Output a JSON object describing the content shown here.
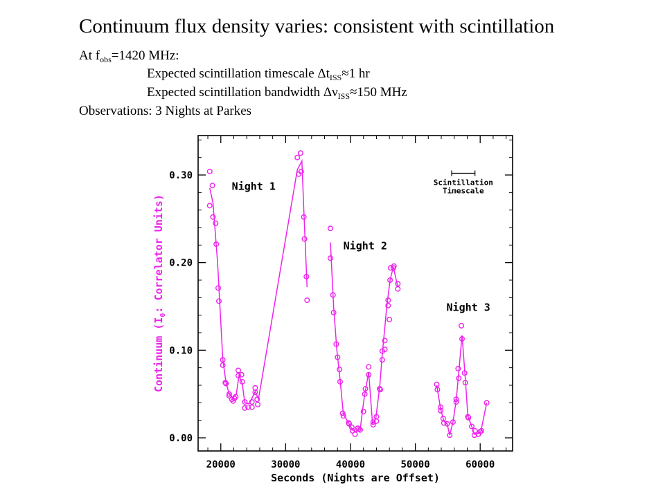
{
  "slide": {
    "title": "Continuum flux density varies: consistent with scintillation",
    "line1": {
      "prefix": "At f",
      "sub": "obs",
      "suffix": "=1420 MHz:"
    },
    "line2": {
      "prefix": "Expected scintillation timescale  Δt",
      "sub": "ISS",
      "suffix": "≈1 hr"
    },
    "line3": {
      "prefix": "Expected scintillation bandwidth Δν",
      "sub": "ISS",
      "suffix": "≈150 MHz"
    },
    "line4": "Observations: 3 Nights at Parkes"
  },
  "colors": {
    "series": "#ee22ee",
    "axis": "#000000",
    "text": "#000000"
  },
  "chart_data": {
    "type": "scatter",
    "xlabel": "Seconds (Nights are Offset)",
    "ylabel_parts": {
      "main": "Continuum (I",
      "sub": "0",
      "tail": ": Correlator Units)"
    },
    "xlim": [
      16500,
      65000
    ],
    "ylim": [
      -0.015,
      0.345
    ],
    "xticks": [
      20000,
      30000,
      40000,
      50000,
      60000
    ],
    "yticks": [
      0.0,
      0.1,
      0.2,
      0.3
    ],
    "xtick_labels": [
      "20000",
      "30000",
      "40000",
      "50000",
      "60000"
    ],
    "ytick_labels": [
      "0.00",
      "0.10",
      "0.20",
      "0.30"
    ],
    "grid": false,
    "annotations": [
      {
        "text": "Night 1",
        "x": 21700,
        "y": 0.283
      },
      {
        "text": "Night 2",
        "x": 38900,
        "y": 0.215
      },
      {
        "text": "Night 3",
        "x": 54800,
        "y": 0.145
      }
    ],
    "scale_bar": {
      "label1": "Scintillation",
      "label2": "Timescale",
      "x_start": 55600,
      "x_end": 59200,
      "y": 0.302
    },
    "series": [
      {
        "name": "Night 1",
        "points": [
          [
            18300,
            0.304
          ],
          [
            18300,
            0.265
          ],
          [
            18700,
            0.288
          ],
          [
            18800,
            0.252
          ],
          [
            19200,
            0.245
          ],
          [
            19300,
            0.221
          ],
          [
            19600,
            0.171
          ],
          [
            19700,
            0.156
          ],
          [
            20300,
            0.089
          ],
          [
            20300,
            0.083
          ],
          [
            20700,
            0.063
          ],
          [
            20800,
            0.062
          ],
          [
            21300,
            0.05
          ],
          [
            21300,
            0.048
          ],
          [
            21700,
            0.044
          ],
          [
            21900,
            0.042
          ],
          [
            22100,
            0.045
          ],
          [
            22300,
            0.047
          ],
          [
            22700,
            0.077
          ],
          [
            22700,
            0.071
          ],
          [
            23200,
            0.072
          ],
          [
            23300,
            0.064
          ],
          [
            23700,
            0.041
          ],
          [
            23700,
            0.034
          ],
          [
            24200,
            0.035
          ],
          [
            24800,
            0.041
          ],
          [
            24800,
            0.035
          ],
          [
            25300,
            0.052
          ],
          [
            25300,
            0.057
          ],
          [
            25600,
            0.044
          ],
          [
            25700,
            0.038
          ],
          [
            31800,
            0.32
          ],
          [
            32000,
            0.301
          ],
          [
            32300,
            0.325
          ],
          [
            32400,
            0.304
          ],
          [
            32800,
            0.252
          ],
          [
            32900,
            0.227
          ],
          [
            33200,
            0.184
          ],
          [
            33300,
            0.157
          ]
        ],
        "line": [
          [
            18300,
            0.285
          ],
          [
            18800,
            0.268
          ],
          [
            19500,
            0.2
          ],
          [
            20300,
            0.09
          ],
          [
            20800,
            0.063
          ],
          [
            21300,
            0.05
          ],
          [
            21800,
            0.045
          ],
          [
            22400,
            0.05
          ],
          [
            22800,
            0.071
          ],
          [
            23300,
            0.062
          ],
          [
            23700,
            0.04
          ],
          [
            24400,
            0.039
          ],
          [
            25300,
            0.053
          ],
          [
            25800,
            0.044
          ],
          [
            31800,
            0.306
          ],
          [
            32500,
            0.316
          ],
          [
            32800,
            0.26
          ],
          [
            33300,
            0.172
          ]
        ]
      },
      {
        "name": "Night 2",
        "points": [
          [
            36900,
            0.239
          ],
          [
            36900,
            0.205
          ],
          [
            37300,
            0.163
          ],
          [
            37400,
            0.143
          ],
          [
            37800,
            0.107
          ],
          [
            38000,
            0.092
          ],
          [
            38300,
            0.078
          ],
          [
            38400,
            0.064
          ],
          [
            38800,
            0.028
          ],
          [
            38900,
            0.025
          ],
          [
            39700,
            0.017
          ],
          [
            39800,
            0.016
          ],
          [
            40200,
            0.012
          ],
          [
            40300,
            0.008
          ],
          [
            40700,
            0.004
          ],
          [
            41100,
            0.011
          ],
          [
            41300,
            0.01
          ],
          [
            41500,
            0.009
          ],
          [
            42000,
            0.03
          ],
          [
            42200,
            0.05
          ],
          [
            42300,
            0.056
          ],
          [
            42800,
            0.081
          ],
          [
            42800,
            0.072
          ],
          [
            43500,
            0.015
          ],
          [
            43500,
            0.018
          ],
          [
            44000,
            0.024
          ],
          [
            44000,
            0.019
          ],
          [
            44500,
            0.056
          ],
          [
            44600,
            0.055
          ],
          [
            44900,
            0.089
          ],
          [
            44900,
            0.099
          ],
          [
            45300,
            0.111
          ],
          [
            45300,
            0.101
          ],
          [
            45800,
            0.151
          ],
          [
            45800,
            0.157
          ],
          [
            46000,
            0.135
          ],
          [
            46100,
            0.18
          ],
          [
            46200,
            0.194
          ],
          [
            46600,
            0.194
          ],
          [
            46700,
            0.196
          ],
          [
            47300,
            0.176
          ],
          [
            47300,
            0.17
          ]
        ],
        "line": [
          [
            36900,
            0.223
          ],
          [
            37400,
            0.15
          ],
          [
            37900,
            0.1
          ],
          [
            38400,
            0.066
          ],
          [
            38900,
            0.027
          ],
          [
            39700,
            0.017
          ],
          [
            40300,
            0.009
          ],
          [
            40800,
            0.007
          ],
          [
            41500,
            0.01
          ],
          [
            42100,
            0.045
          ],
          [
            42800,
            0.075
          ],
          [
            43400,
            0.016
          ],
          [
            43900,
            0.022
          ],
          [
            44500,
            0.058
          ],
          [
            44900,
            0.095
          ],
          [
            45600,
            0.15
          ],
          [
            46100,
            0.18
          ],
          [
            46600,
            0.195
          ],
          [
            47300,
            0.172
          ]
        ]
      },
      {
        "name": "Night 3",
        "points": [
          [
            53300,
            0.061
          ],
          [
            53400,
            0.055
          ],
          [
            53900,
            0.035
          ],
          [
            53900,
            0.031
          ],
          [
            54300,
            0.022
          ],
          [
            54400,
            0.017
          ],
          [
            54900,
            0.016
          ],
          [
            55300,
            0.003
          ],
          [
            55800,
            0.018
          ],
          [
            56300,
            0.041
          ],
          [
            56300,
            0.044
          ],
          [
            56600,
            0.079
          ],
          [
            56700,
            0.068
          ],
          [
            57100,
            0.128
          ],
          [
            57200,
            0.113
          ],
          [
            57600,
            0.074
          ],
          [
            57700,
            0.063
          ],
          [
            58100,
            0.024
          ],
          [
            58200,
            0.023
          ],
          [
            58700,
            0.013
          ],
          [
            59100,
            0.003
          ],
          [
            59200,
            0.008
          ],
          [
            59700,
            0.004
          ],
          [
            60000,
            0.007
          ],
          [
            60200,
            0.008
          ],
          [
            61000,
            0.04
          ]
        ],
        "line": [
          [
            53300,
            0.06
          ],
          [
            53900,
            0.033
          ],
          [
            54400,
            0.019
          ],
          [
            54900,
            0.016
          ],
          [
            55300,
            0.003
          ],
          [
            55800,
            0.018
          ],
          [
            56300,
            0.043
          ],
          [
            56700,
            0.075
          ],
          [
            57200,
            0.117
          ],
          [
            57700,
            0.068
          ],
          [
            58100,
            0.025
          ],
          [
            58700,
            0.013
          ],
          [
            59100,
            0.004
          ],
          [
            59700,
            0.005
          ],
          [
            60100,
            0.007
          ],
          [
            61000,
            0.04
          ]
        ]
      }
    ]
  }
}
